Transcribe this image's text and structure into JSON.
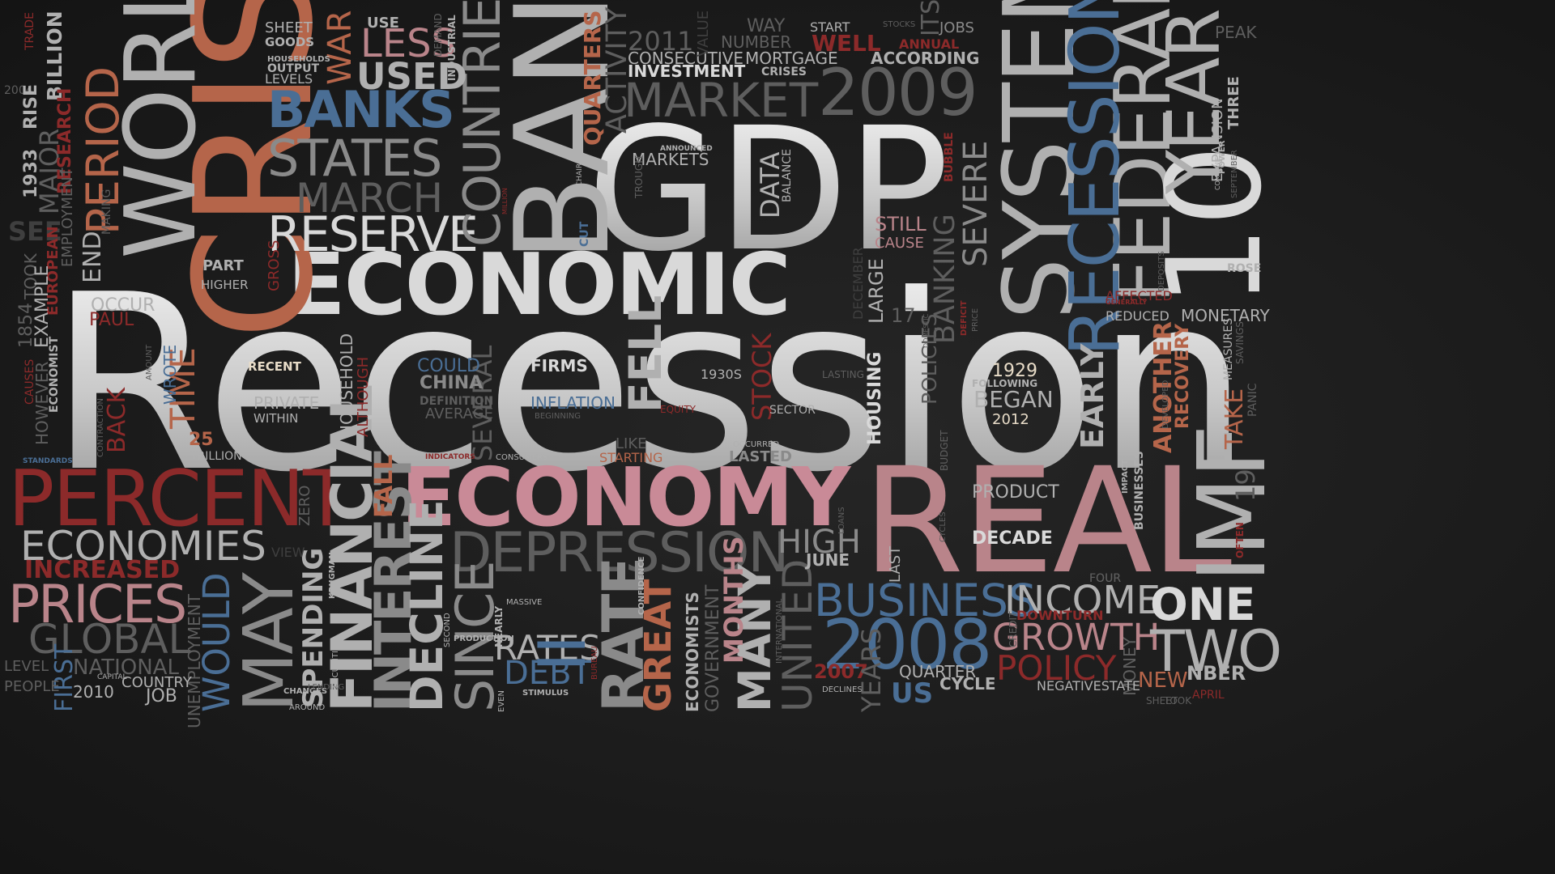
{
  "words": [
    "Recession",
    "GDP",
    "ECONOMIC",
    "ECONOMY",
    "REAL",
    "CRISIS",
    "BANK",
    "PERCENT",
    "SYSTEM",
    "WORLD",
    "BANKS",
    "STATES",
    "MARCH",
    "RESERVE",
    "COUNTRIES",
    "MARKET",
    "2009",
    "FEDERAL",
    "RECESSIONS",
    "10",
    "YEAR",
    "DEPRESSION",
    "BUSINESS",
    "2008",
    "ECONOMIES",
    "PRICES",
    "GLOBAL",
    "INCREASED",
    "NATIONAL",
    "FINANCIAL",
    "MAY",
    "WOULD",
    "INTEREST",
    "DECLINE",
    "SINCE",
    "RATE",
    "GREAT",
    "MANY",
    "UNITED",
    "RATES",
    "DEBT",
    "INCOME",
    "GROWTH",
    "POLICY",
    "ONE",
    "TWO",
    "IMF",
    "HIGH",
    "JUNE",
    "DECADE",
    "PRODUCT",
    "LESS",
    "USED",
    "WAR",
    "PERIOD",
    "END",
    "MAJOR",
    "BILLION",
    "RESEARCH",
    "TIME",
    "FELL",
    "STOCK",
    "SEVERAL",
    "FIRMS",
    "INFLATION",
    "RECENT",
    "PRIVATE",
    "WITHIN",
    "COULD",
    "CHINA",
    "DEFINITION",
    "AVERAGE",
    "1930S",
    "1929",
    "FOLLOWING",
    "BEGAN",
    "2012",
    "DATA",
    "BALANCE",
    "MARKETS",
    "ANNOUNCED",
    "2011",
    "CONSECUTIVE",
    "MORTGAGE",
    "INVESTMENT",
    "CRISES",
    "NUMBER",
    "WAY",
    "START",
    "WELL",
    "ANNUAL",
    "ACCORDING",
    "JOBS",
    "STOCKS",
    "ITS",
    "QUARTERS",
    "ACTIVITY",
    "VALUE",
    "DEMAND",
    "INDUSTRIAL",
    "SHEET",
    "GOODS",
    "USE",
    "HOUSEHOLDS",
    "OUTPUT",
    "LEVELS",
    "TRADE",
    "2004",
    "RISE",
    "1933",
    "SEE",
    "EMPLOYMENT",
    "MAKING",
    "EUROPEAN",
    "TOOK",
    "1854",
    "EXAMPLE",
    "ECONOMIST",
    "CAUSES",
    "HOWEVER",
    "BACK",
    "PART",
    "HIGHER",
    "OCCUR",
    "PAUL",
    "GROSS",
    "WROTE",
    "AMOUNT",
    "25",
    "TRILLION",
    "HOUSEHOLD",
    "ALTHOUGH",
    "STILL",
    "CAUSE",
    "SEVERE",
    "BANKING",
    "POLICIES",
    "BUBBLE",
    "DEFICIT",
    "HOUSING",
    "LARGE",
    "DECEMBER",
    "17",
    "LASTING",
    "SECTOR",
    "EQUITY",
    "LIKE",
    "STARTING",
    "OCCURRED",
    "LASTED",
    "CONSUMERS",
    "INDICATORS",
    "FALL",
    "ZERO",
    "SPENDING",
    "KRUGMAN",
    "II",
    "MASSIVE",
    "NEARLY",
    "PRODUCTION",
    "SECOND",
    "CONFIDENCE",
    "ECONOMISTS",
    "GOVERNMENT",
    "MONTHS",
    "EARLY",
    "ANOTHER",
    "RECOVERY",
    "TAKE",
    "AFFECTED",
    "GENERALLY",
    "REDUCED",
    "MONETARY",
    "ROSE",
    "PEAK",
    "EXPANSION",
    "THREE",
    "POWER",
    "SEPTEMBER",
    "COMPANIES",
    "MEASURES",
    "SAVINGS",
    "PANIC",
    "IMPACT",
    "BUSINESSES",
    "DEVELOPED",
    "19",
    "OFTEN",
    "FOUR",
    "LAST",
    "BUDGET",
    "CYCLES",
    "LOANS",
    "DOWNTURN",
    "QUARTER",
    "2007",
    "US",
    "CYCLE",
    "NEW",
    "NBER",
    "APRIL",
    "MONEY",
    "NEGATIVESTATE",
    "DECLINES",
    "CREDIT",
    "UNEMPLOYMENT",
    "JOB",
    "2010",
    "COUNTRY",
    "CAPITAL",
    "FIRST",
    "LEVEL",
    "PEOPLE",
    "STANDARDS",
    "CHANGES",
    "LENDING",
    "AROUND",
    "SECURITIES",
    "BUREAU",
    "STIMULUS",
    "EVEN",
    "YEARS",
    "INTERNATIONAL",
    "VIEW",
    "CUT",
    "CHAIRMAN",
    "TROUGH",
    "MILLION",
    "BEGINNING",
    "DOMESTIC",
    "CONTRACTION",
    "FOUR",
    "SHEET",
    "TOOK",
    "PRICE",
    "DEPOSITS"
  ]
}
